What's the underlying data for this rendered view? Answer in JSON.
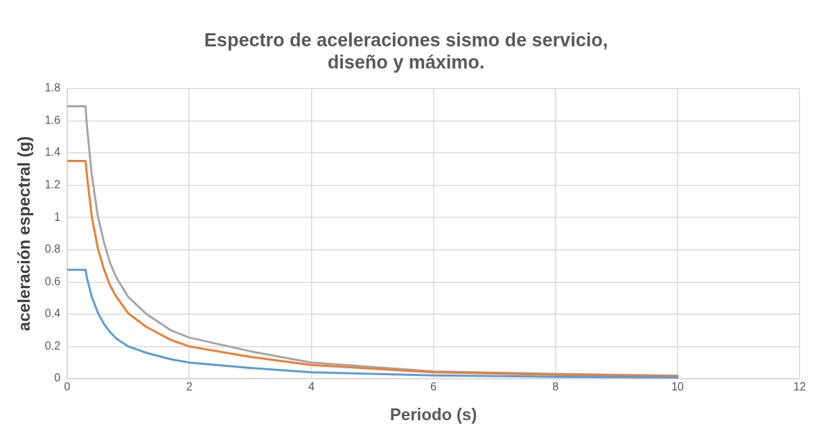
{
  "chart_data": {
    "type": "line",
    "title": [
      "Espectro de aceleraciones sismo de servicio,",
      "diseño y máximo."
    ],
    "xlabel": "Periodo (s)",
    "ylabel": "aceleración espectral (g)",
    "x": [
      0,
      0.3,
      0.32,
      0.4,
      0.5,
      0.6,
      0.7,
      0.8,
      1,
      1.3,
      1.7,
      2,
      3,
      4,
      6,
      8,
      10
    ],
    "series": [
      {
        "color": "#5b9bd5",
        "values": [
          0.675,
          0.675,
          0.63,
          0.51,
          0.41,
          0.34,
          0.29,
          0.25,
          0.2,
          0.16,
          0.12,
          0.1,
          0.067,
          0.04,
          0.02,
          0.012,
          0.008
        ]
      },
      {
        "color": "#ed7d31",
        "values": [
          1.35,
          1.35,
          1.27,
          1.01,
          0.81,
          0.68,
          0.58,
          0.51,
          0.405,
          0.32,
          0.24,
          0.2,
          0.135,
          0.085,
          0.04,
          0.025,
          0.015
        ]
      },
      {
        "color": "#a5a5a5",
        "values": [
          1.69,
          1.69,
          1.58,
          1.27,
          1.01,
          0.85,
          0.72,
          0.63,
          0.507,
          0.4,
          0.3,
          0.255,
          0.17,
          0.1,
          0.045,
          0.03,
          0.018
        ]
      }
    ],
    "xlim": [
      0,
      12
    ],
    "xticks": [
      0,
      2,
      4,
      6,
      8,
      10,
      12
    ],
    "ylim": [
      0,
      1.8
    ],
    "yticks": [
      0,
      0.2,
      0.4,
      0.6,
      0.8,
      1,
      1.2,
      1.4,
      1.6,
      1.8
    ],
    "grid": true,
    "legend": false,
    "marker": "none",
    "line_style": "solid"
  }
}
